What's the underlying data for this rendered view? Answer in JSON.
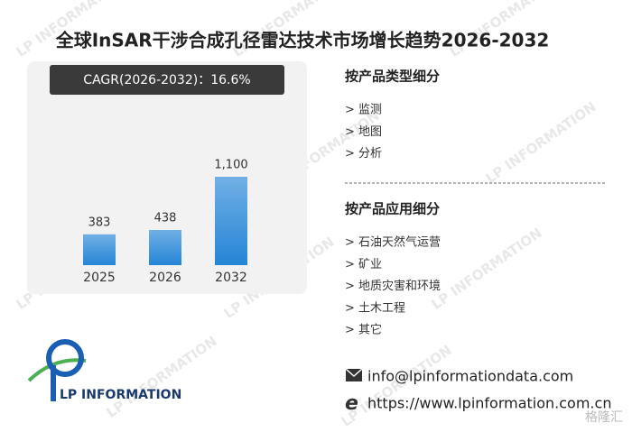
{
  "watermark": "LP INFORMATION",
  "corner_mark": "格隆汇",
  "chart_data": {
    "type": "bar",
    "title": "全球InSAR干涉合成孔径雷达技术市场增长趋势2026-2032",
    "annotation": "CAGR(2026-2032)：16.6%",
    "categories": [
      "2025",
      "2026",
      "2032"
    ],
    "values": [
      383,
      438,
      1100
    ],
    "value_labels": [
      "383",
      "438",
      "1,100"
    ],
    "color": "#2585d6"
  },
  "segments": [
    {
      "title": "按产品类型细分",
      "items": [
        "> 监测",
        "> 地图",
        "> 分析"
      ]
    },
    {
      "title": "按产品应用细分",
      "items": [
        "> 石油天然气运营",
        "> 矿业",
        "> 地质灾害和环境",
        "> 土木工程",
        "> 其它"
      ]
    }
  ],
  "contact": {
    "email": "info@lpinformationdata.com",
    "website": "https://www.lpinformation.com.cn"
  },
  "logo": {
    "text": "LP INFORMATION"
  }
}
